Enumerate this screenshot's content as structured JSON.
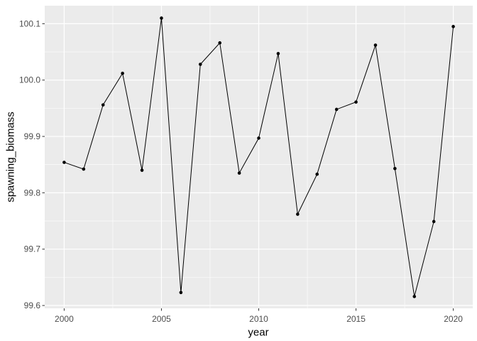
{
  "chart_data": {
    "type": "line",
    "title": "",
    "xlabel": "year",
    "ylabel": "spawning_biomass",
    "x": [
      2000,
      2001,
      2002,
      2003,
      2004,
      2005,
      2006,
      2007,
      2008,
      2009,
      2010,
      2011,
      2012,
      2013,
      2014,
      2015,
      2016,
      2017,
      2018,
      2019,
      2020
    ],
    "y": [
      99.854,
      99.842,
      99.956,
      100.012,
      99.84,
      100.11,
      99.623,
      100.028,
      100.066,
      99.835,
      99.897,
      100.047,
      99.762,
      99.833,
      99.948,
      99.961,
      100.062,
      99.843,
      99.616,
      99.749,
      100.095
    ],
    "x_range": [
      1999,
      2021
    ],
    "y_range": [
      99.595,
      100.132
    ],
    "x_ticks": [
      2000,
      2005,
      2010,
      2015,
      2020
    ],
    "x_tick_labels": [
      "2000",
      "2005",
      "2010",
      "2015",
      "2020"
    ],
    "x_minor_ticks": [
      2002.5,
      2007.5,
      2012.5,
      2017.5
    ],
    "y_ticks": [
      99.6,
      99.7,
      99.8,
      99.9,
      100.0,
      100.1
    ],
    "y_tick_labels": [
      "99.6",
      "99.7",
      "99.8",
      "99.9",
      "100.0",
      "100.1"
    ],
    "y_minor_ticks": [
      99.65,
      99.75,
      99.85,
      99.95,
      100.05
    ],
    "grid": true,
    "legend": false,
    "colors": {
      "panel_bg": "#EBEBEB",
      "grid": "#FFFFFF",
      "line": "#000000",
      "point": "#000000",
      "tick_mark": "#333333",
      "tick_label": "#4D4D4D",
      "axis_title": "#000000"
    }
  }
}
